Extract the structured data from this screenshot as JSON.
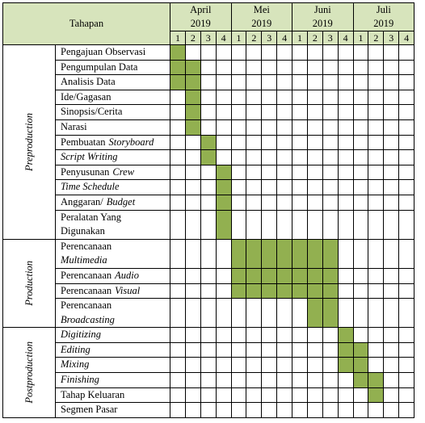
{
  "header": {
    "title": "Tahapan"
  },
  "months": [
    {
      "name": "April",
      "year": 2019,
      "weeks": [
        1,
        2,
        3,
        4
      ]
    },
    {
      "name": "Mei",
      "year": 2019,
      "weeks": [
        1,
        2,
        3,
        4
      ]
    },
    {
      "name": "Juni",
      "year": 2019,
      "weeks": [
        1,
        2,
        3,
        4
      ]
    },
    {
      "name": "Juli",
      "year": 2019,
      "weeks": [
        1,
        2,
        3,
        4
      ]
    }
  ],
  "phases": [
    {
      "name": "Preproduction",
      "tasks": [
        {
          "lines": [
            [
              {
                "text": "Pengajuan Observasi"
              }
            ]
          ],
          "weeks": [
            1
          ]
        },
        {
          "lines": [
            [
              {
                "text": "Pengumpulan Data"
              }
            ]
          ],
          "weeks": [
            1,
            2
          ]
        },
        {
          "lines": [
            [
              {
                "text": "Analisis Data"
              }
            ]
          ],
          "weeks": [
            1,
            2
          ]
        },
        {
          "lines": [
            [
              {
                "text": "Ide/Gagasan"
              }
            ]
          ],
          "weeks": [
            2
          ]
        },
        {
          "lines": [
            [
              {
                "text": "Sinopsis/Cerita"
              }
            ]
          ],
          "weeks": [
            2
          ]
        },
        {
          "lines": [
            [
              {
                "text": "Narasi"
              }
            ]
          ],
          "weeks": [
            2
          ]
        },
        {
          "lines": [
            [
              {
                "text": "Pembuatan"
              },
              {
                "text": "Storyboard",
                "italic": true
              }
            ]
          ],
          "weeks": [
            3
          ]
        },
        {
          "lines": [
            [
              {
                "text": "Script Writing",
                "italic": true
              }
            ]
          ],
          "weeks": [
            3
          ]
        },
        {
          "lines": [
            [
              {
                "text": "Penyusunan"
              },
              {
                "text": "Crew",
                "italic": true
              }
            ]
          ],
          "weeks": [
            4
          ]
        },
        {
          "lines": [
            [
              {
                "text": "Time Schedule",
                "italic": true
              }
            ]
          ],
          "weeks": [
            4
          ]
        },
        {
          "lines": [
            [
              {
                "text": "Anggaran/"
              },
              {
                "text": "Budget",
                "italic": true
              }
            ]
          ],
          "weeks": [
            4
          ]
        },
        {
          "lines": [
            [
              {
                "text": "Peralatan Yang"
              }
            ],
            [
              {
                "text": "Digunakan"
              }
            ]
          ],
          "weeks": [
            4
          ]
        }
      ]
    },
    {
      "name": "Production",
      "tasks": [
        {
          "lines": [
            [
              {
                "text": "Perencanaan"
              }
            ],
            [
              {
                "text": "Multimedia",
                "italic": true
              }
            ]
          ],
          "weeks": [
            5,
            6,
            7,
            8,
            9,
            10,
            11
          ]
        },
        {
          "lines": [
            [
              {
                "text": "Perencanaan"
              },
              {
                "text": "Audio",
                "italic": true
              }
            ]
          ],
          "weeks": [
            5,
            6,
            7,
            8,
            9,
            10,
            11
          ]
        },
        {
          "lines": [
            [
              {
                "text": "Perencanaan"
              },
              {
                "text": "Visual",
                "italic": true
              }
            ]
          ],
          "weeks": [
            5,
            6,
            7,
            8,
            9,
            10,
            11
          ]
        },
        {
          "lines": [
            [
              {
                "text": "Perencanaan"
              }
            ],
            [
              {
                "text": "Broadcasting",
                "italic": true
              }
            ]
          ],
          "weeks": [
            10,
            11
          ]
        }
      ]
    },
    {
      "name": "Postproduction",
      "tasks": [
        {
          "lines": [
            [
              {
                "text": "Digitizing",
                "italic": true
              }
            ]
          ],
          "weeks": [
            12
          ]
        },
        {
          "lines": [
            [
              {
                "text": "Editing",
                "italic": true
              }
            ]
          ],
          "weeks": [
            12,
            13
          ]
        },
        {
          "lines": [
            [
              {
                "text": "Mixing",
                "italic": true
              }
            ]
          ],
          "weeks": [
            12,
            13
          ]
        },
        {
          "lines": [
            [
              {
                "text": "Finishing",
                "italic": true
              }
            ]
          ],
          "weeks": [
            13,
            14
          ]
        },
        {
          "lines": [
            [
              {
                "text": "Tahap Keluaran"
              }
            ]
          ],
          "weeks": [
            14
          ]
        },
        {
          "lines": [
            [
              {
                "text": "Segmen Pasar"
              }
            ]
          ],
          "weeks": []
        }
      ]
    }
  ]
}
